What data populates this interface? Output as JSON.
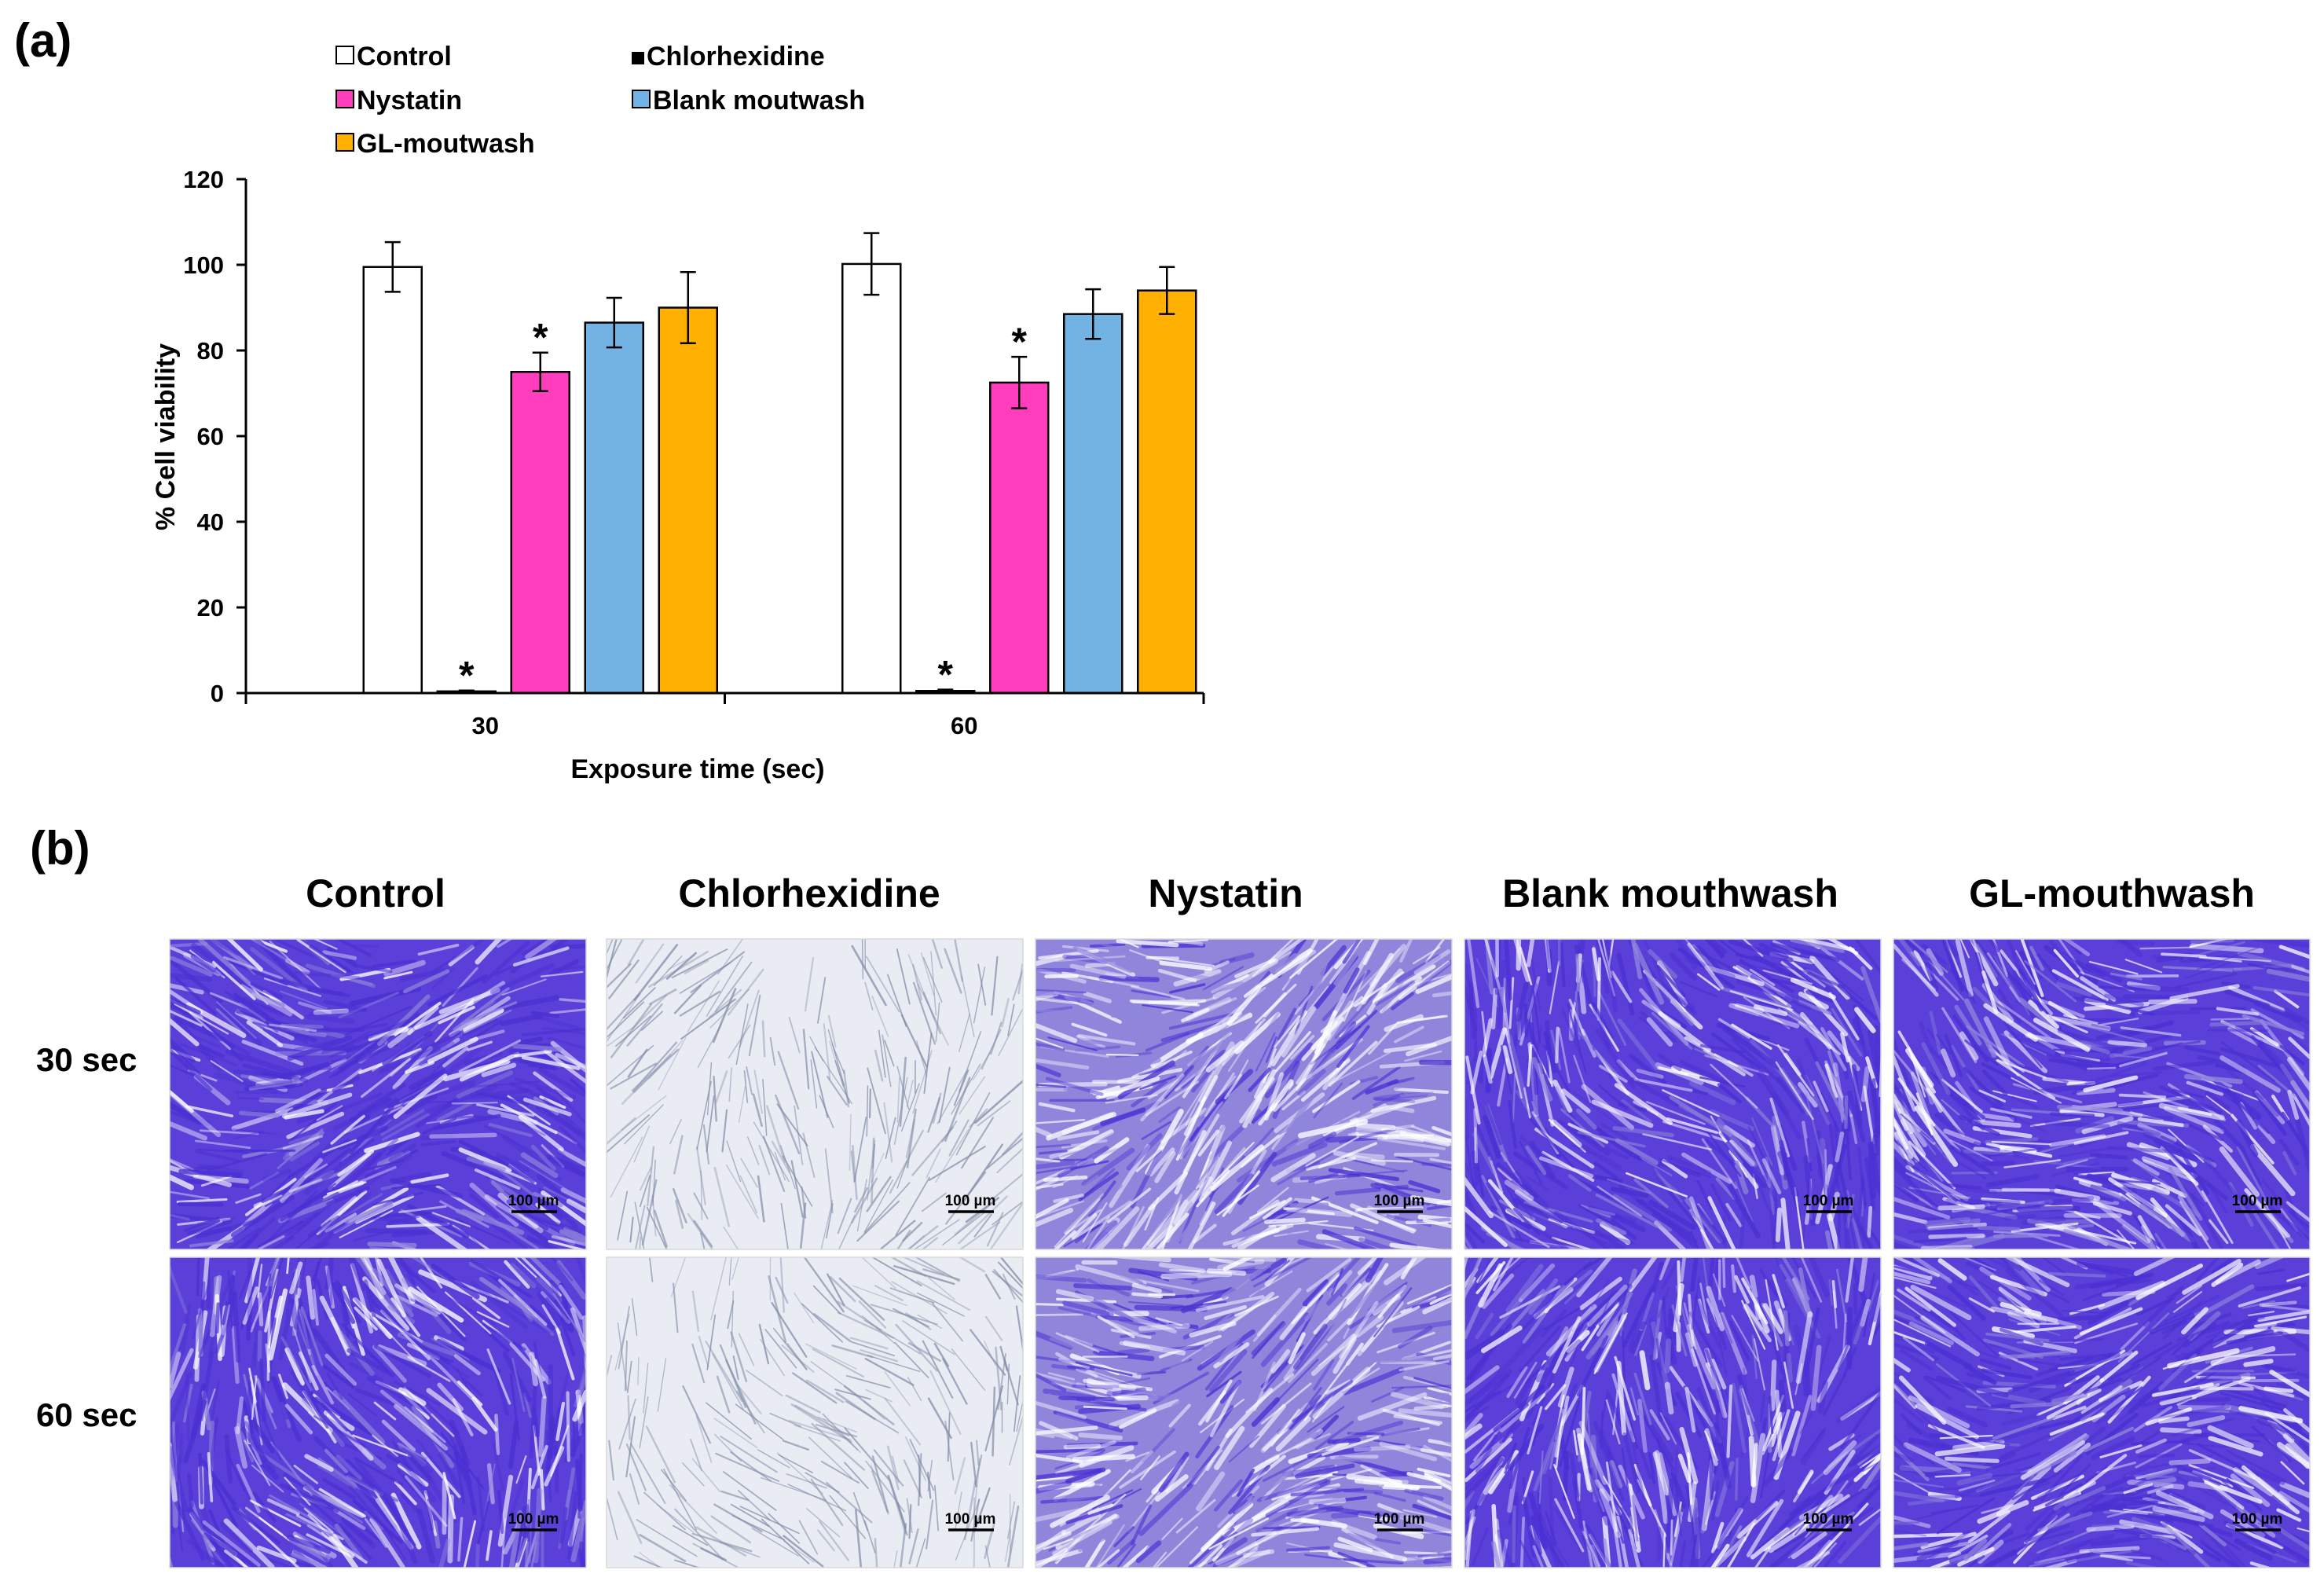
{
  "panel_a_label": "(a)",
  "panel_b_label": "(b)",
  "chart_data": {
    "type": "bar",
    "title": "",
    "xlabel": "Exposure time (sec)",
    "ylabel": "% Cell viability",
    "categories": [
      "30",
      "60"
    ],
    "ylim": [
      0,
      120
    ],
    "yticks": [
      0,
      20,
      40,
      60,
      80,
      100,
      120
    ],
    "grid": false,
    "legend_position": "top",
    "series": [
      {
        "name": "Control",
        "color": "#ffffff",
        "values": [
          99.5,
          100.2
        ],
        "errors": [
          5.8,
          7.2
        ],
        "significant": [
          false,
          false
        ]
      },
      {
        "name": "Chlorhexidine",
        "color": "#000000",
        "values": [
          0.4,
          0.5
        ],
        "errors": [
          0.2,
          0.3
        ],
        "significant": [
          true,
          true
        ]
      },
      {
        "name": "Nystatin",
        "color": "#ff3dbd",
        "values": [
          75.0,
          72.5
        ],
        "errors": [
          4.5,
          6.0
        ],
        "significant": [
          true,
          true
        ]
      },
      {
        "name": "Blank moutwash",
        "color": "#73b3e3",
        "values": [
          86.5,
          88.5
        ],
        "errors": [
          5.8,
          5.8
        ],
        "significant": [
          false,
          false
        ]
      },
      {
        "name": "GL-moutwash",
        "color": "#ffb000",
        "values": [
          90.0,
          94.0
        ],
        "errors": [
          8.3,
          5.5
        ],
        "significant": [
          false,
          false
        ]
      }
    ],
    "significance_marker": "*"
  },
  "micrographs": {
    "columns": [
      "Control",
      "Chlorhexidine",
      "Nystatin",
      "Blank mouthwash",
      "GL-mouthwash"
    ],
    "rows": [
      "30 sec",
      "60 sec"
    ],
    "scale_bar_label": "100 µm",
    "stain_colors": {
      "deep": "#4a2fd2",
      "dense": "#5a3fd8",
      "light": "#8f86dc",
      "pale": "#e9ecf3",
      "stroke": "#7f8aa6"
    },
    "density": [
      [
        0.95,
        0.07,
        0.45,
        0.85,
        0.7
      ],
      [
        0.9,
        0.08,
        0.6,
        0.75,
        0.8
      ]
    ]
  }
}
